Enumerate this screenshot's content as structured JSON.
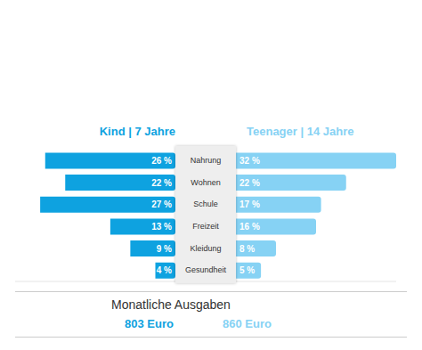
{
  "chart_data": {
    "type": "bar",
    "orientation": "horizontal",
    "categories": [
      "Nahrung",
      "Wohnen",
      "Schule",
      "Freizeit",
      "Kleidung",
      "Gesundheit"
    ],
    "series": [
      {
        "name": "Kind | 7 Jahre",
        "color": "#0ea2e0",
        "values": [
          26,
          22,
          27,
          13,
          9,
          4
        ],
        "value_labels": [
          "26 %",
          "22 %",
          "27 %",
          "13 %",
          "9 %",
          "4 %"
        ]
      },
      {
        "name": "Teenager | 14 Jahre",
        "color": "#86d2f4",
        "values": [
          32,
          22,
          17,
          16,
          8,
          5
        ],
        "value_labels": [
          "32 %",
          "22 %",
          "17 %",
          "16 %",
          "8 %",
          "5 %"
        ]
      }
    ],
    "xlim": [
      0,
      32
    ],
    "data_labels": true,
    "tick_labels": false,
    "grid": false,
    "subtitle": "Monatliche Ausgaben",
    "totals": [
      "803 Euro",
      "860 Euro"
    ]
  }
}
